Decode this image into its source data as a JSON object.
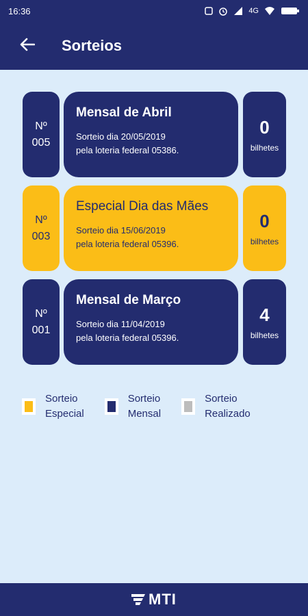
{
  "status_bar": {
    "time": "16:36",
    "network": "4G",
    "icons": [
      "notification-icon",
      "alarm-icon",
      "signal-icon",
      "wifi-icon",
      "battery-icon"
    ]
  },
  "app_bar": {
    "back_icon": "arrow-left-icon",
    "title": "Sorteios"
  },
  "sorteios": [
    {
      "type": "mensal",
      "num_label": "Nº",
      "num": "005",
      "title": "Mensal de Abril",
      "line1": "Sorteio dia 20/05/2019",
      "line2": "pela loteria federal 05386.",
      "count": "0",
      "count_label": "bilhetes"
    },
    {
      "type": "especial",
      "num_label": "Nº",
      "num": "003",
      "title": "Especial Dia das Mães",
      "line1": "Sorteio dia 15/06/2019",
      "line2": "pela loteria federal 05396.",
      "count": "0",
      "count_label": "bilhetes"
    },
    {
      "type": "mensal",
      "num_label": "Nº",
      "num": "001",
      "title": "Mensal de Março",
      "line1": "Sorteio dia 11/04/2019",
      "line2": "pela loteria federal 05396.",
      "count": "4",
      "count_label": "bilhetes"
    }
  ],
  "legend": [
    {
      "line1": "Sorteio",
      "line2": "Especial",
      "color": "#fbbd17"
    },
    {
      "line1": "Sorteio",
      "line2": "Mensal",
      "color": "#232c6f"
    },
    {
      "line1": "Sorteio",
      "line2": "Realizado",
      "color": "#bdbdbd"
    }
  ],
  "footer": {
    "logo_text": "MTI"
  },
  "colors": {
    "primary": "#232c6f",
    "especial": "#fbbd17",
    "background": "#dcecfa",
    "realizado": "#bdbdbd"
  }
}
